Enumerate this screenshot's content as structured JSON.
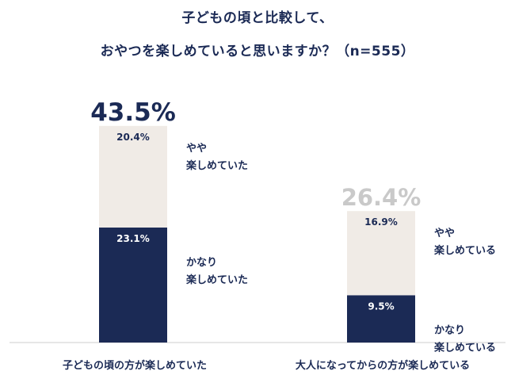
{
  "chart_data": {
    "type": "bar",
    "title_line1": "子どもの頃と比較して、",
    "title_line2": "おやつを楽しめていると思いますか？（n=555）",
    "categories": [
      "子どもの頃の方が楽しめていた",
      "大人になってからの方が楽しめている"
    ],
    "totals": [
      "43.5%",
      "26.4%"
    ],
    "series": [
      {
        "values": [
          23.1,
          9.5
        ],
        "value_labels": [
          "23.1%",
          "9.5%"
        ],
        "annotations": [
          [
            "かなり",
            "楽しめていた"
          ],
          [
            "かなり",
            "楽しめている"
          ]
        ]
      },
      {
        "values": [
          20.4,
          16.9
        ],
        "value_labels": [
          "20.4%",
          "16.9%"
        ],
        "annotations": [
          [
            "やや",
            "楽しめていた"
          ],
          [
            "やや",
            "楽しめている"
          ]
        ]
      }
    ],
    "stacked": true,
    "grid": false
  },
  "colors": {
    "dark": "#1b2a55",
    "light": "#f0ebe6",
    "total_emph": "#1b2a55",
    "total_muted": "#c9c9c9",
    "baseline": "#cccccc"
  }
}
